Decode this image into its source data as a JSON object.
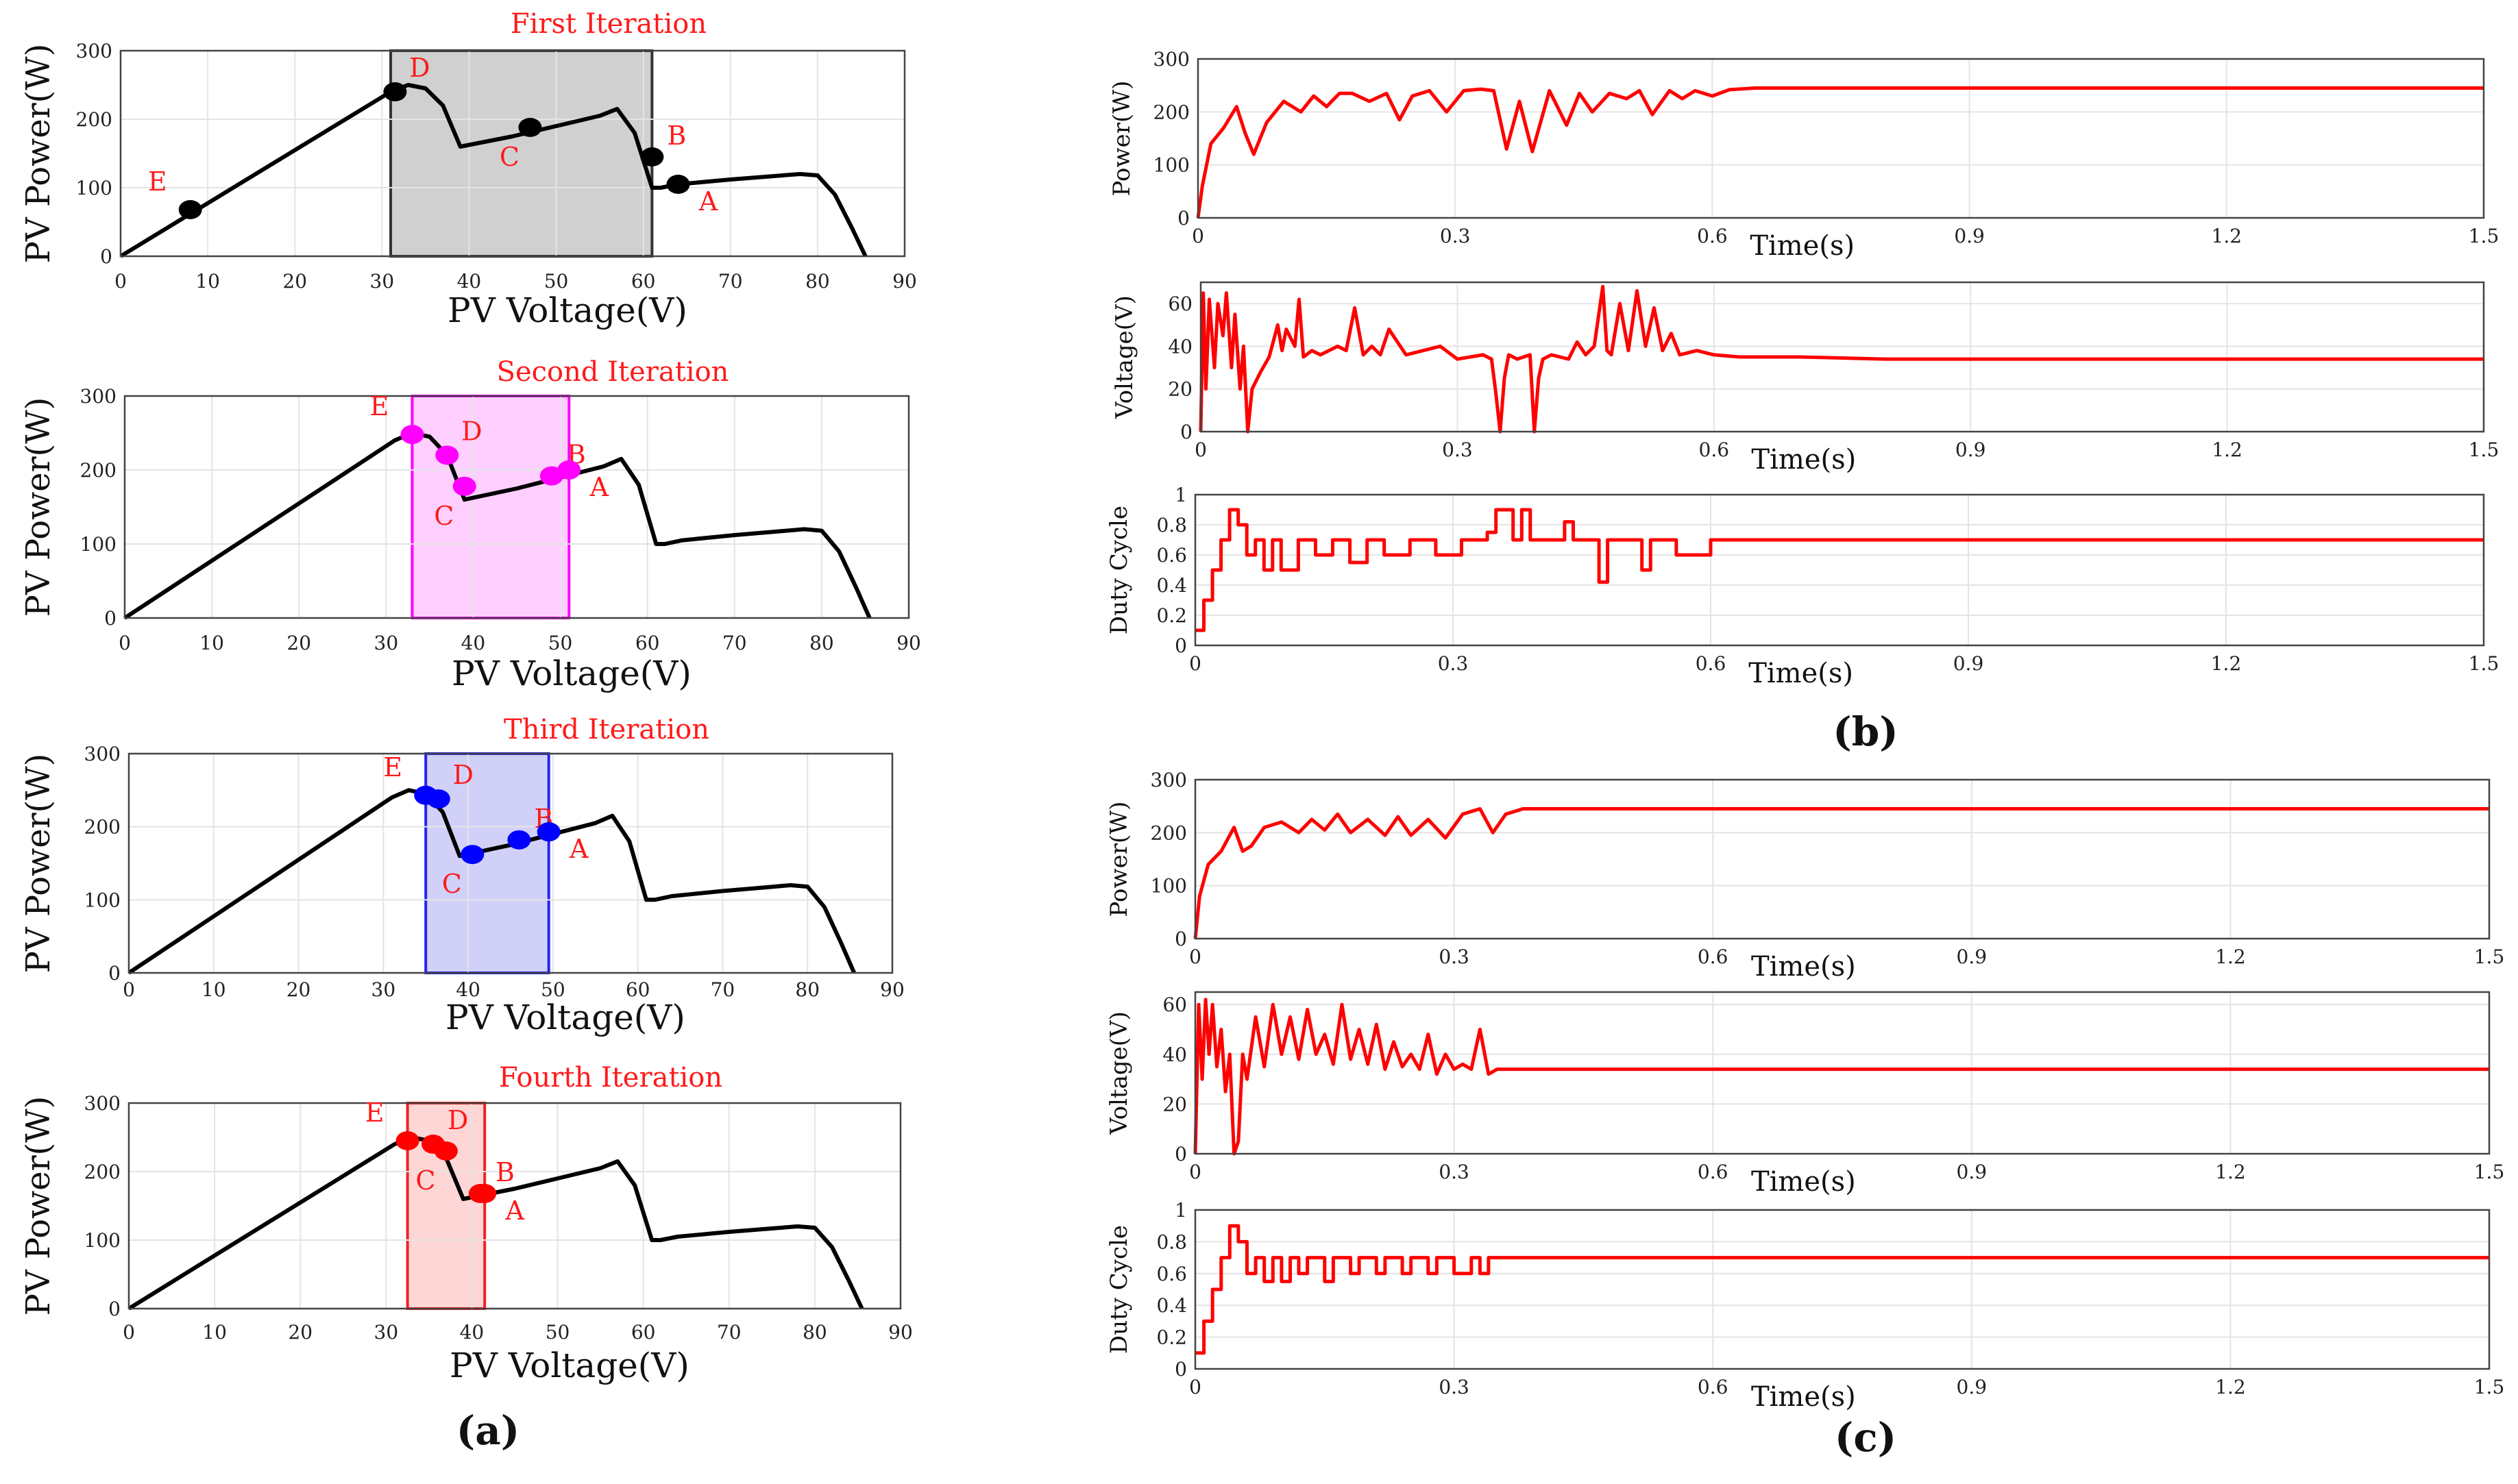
{
  "panels": [
    {
      "label": "(a)"
    },
    {
      "label": "(b)"
    },
    {
      "label": "(c)"
    }
  ],
  "chart_data": [
    {
      "type": "line",
      "panel": "(a)",
      "title": "First Iteration",
      "xlabel": "PV Voltage(V)",
      "ylabel": "PV Power(W)",
      "xlim": [
        0,
        90
      ],
      "ylim": [
        0,
        300
      ],
      "xticks": [
        0,
        10,
        20,
        30,
        40,
        50,
        60,
        70,
        80,
        90
      ],
      "yticks": [
        0,
        100,
        200,
        300
      ],
      "grid": true,
      "color": "#000000",
      "x": [
        0,
        31,
        33,
        35,
        37,
        39,
        45,
        50,
        55,
        57,
        59,
        61,
        62,
        64,
        70,
        75,
        78,
        80,
        82,
        84,
        85.5
      ],
      "y": [
        0,
        240,
        250,
        245,
        220,
        160,
        175,
        190,
        205,
        215,
        180,
        100,
        100,
        105,
        112,
        117,
        120,
        118,
        90,
        40,
        0
      ],
      "shade": {
        "from": 31,
        "to": 61,
        "fill": "#d0d0d0",
        "stroke": "#333333"
      },
      "marker_color": "#000000",
      "points": [
        {
          "label": "E",
          "x": 8,
          "y": 68
        },
        {
          "label": "D",
          "x": 31.5,
          "y": 240
        },
        {
          "label": "C",
          "x": 47,
          "y": 188
        },
        {
          "label": "B",
          "x": 61,
          "y": 145
        },
        {
          "label": "A",
          "x": 64,
          "y": 105
        }
      ]
    },
    {
      "type": "line",
      "panel": "(a)",
      "title": "Second Iteration",
      "xlabel": "PV Voltage(V)",
      "ylabel": "PV Power(W)",
      "xlim": [
        0,
        90
      ],
      "ylim": [
        0,
        300
      ],
      "xticks": [
        0,
        10,
        20,
        30,
        40,
        50,
        60,
        70,
        80,
        90
      ],
      "yticks": [
        0,
        100,
        200,
        300
      ],
      "grid": true,
      "color": "#000000",
      "x": [
        0,
        31,
        33,
        35,
        37,
        39,
        45,
        50,
        55,
        57,
        59,
        61,
        62,
        64,
        70,
        75,
        78,
        80,
        82,
        84,
        85.5
      ],
      "y": [
        0,
        240,
        250,
        245,
        220,
        160,
        175,
        190,
        205,
        215,
        180,
        100,
        100,
        105,
        112,
        117,
        120,
        118,
        90,
        40,
        0
      ],
      "shade": {
        "from": 33,
        "to": 51,
        "fill": "#ffd0ff",
        "stroke": "#ff00ff"
      },
      "marker_color": "#ff00ff",
      "points": [
        {
          "label": "E",
          "x": 33,
          "y": 248
        },
        {
          "label": "D",
          "x": 37,
          "y": 220
        },
        {
          "label": "C",
          "x": 39,
          "y": 178
        },
        {
          "label": "B",
          "x": 49,
          "y": 192
        },
        {
          "label": "A",
          "x": 51,
          "y": 200
        }
      ]
    },
    {
      "type": "line",
      "panel": "(a)",
      "title": "Third Iteration",
      "xlabel": "PV Voltage(V)",
      "ylabel": "PV Power(W)",
      "xlim": [
        0,
        90
      ],
      "ylim": [
        0,
        300
      ],
      "xticks": [
        0,
        10,
        20,
        30,
        40,
        50,
        60,
        70,
        80,
        90
      ],
      "yticks": [
        0,
        100,
        200,
        300
      ],
      "grid": true,
      "color": "#000000",
      "x": [
        0,
        31,
        33,
        35,
        37,
        39,
        45,
        50,
        55,
        57,
        59,
        61,
        62,
        64,
        70,
        75,
        78,
        80,
        82,
        84,
        85.5
      ],
      "y": [
        0,
        240,
        250,
        245,
        220,
        160,
        175,
        190,
        205,
        215,
        180,
        100,
        100,
        105,
        112,
        117,
        120,
        118,
        90,
        40,
        0
      ],
      "shade": {
        "from": 35,
        "to": 49.5,
        "fill": "#d0d0f8",
        "stroke": "#2222ee"
      },
      "marker_color": "#0000ff",
      "points": [
        {
          "label": "E",
          "x": 35,
          "y": 243
        },
        {
          "label": "D",
          "x": 36.5,
          "y": 238
        },
        {
          "label": "C",
          "x": 40.5,
          "y": 162
        },
        {
          "label": "B",
          "x": 46,
          "y": 182
        },
        {
          "label": "A",
          "x": 49.5,
          "y": 193
        }
      ]
    },
    {
      "type": "line",
      "panel": "(a)",
      "title": "Fourth Iteration",
      "xlabel": "PV Voltage(V)",
      "ylabel": "PV Power(W)",
      "xlim": [
        0,
        90
      ],
      "ylim": [
        0,
        300
      ],
      "xticks": [
        0,
        10,
        20,
        30,
        40,
        50,
        60,
        70,
        80,
        90
      ],
      "yticks": [
        0,
        100,
        200,
        300
      ],
      "grid": true,
      "color": "#000000",
      "x": [
        0,
        31,
        33,
        35,
        37,
        39,
        45,
        50,
        55,
        57,
        59,
        61,
        62,
        64,
        70,
        75,
        78,
        80,
        82,
        84,
        85.5
      ],
      "y": [
        0,
        240,
        250,
        245,
        220,
        160,
        175,
        190,
        205,
        215,
        180,
        100,
        100,
        105,
        112,
        117,
        120,
        118,
        90,
        40,
        0
      ],
      "shade": {
        "from": 32.5,
        "to": 41.5,
        "fill": "#ffd6d6",
        "stroke": "#ee2222"
      },
      "marker_color": "#ff0000",
      "points": [
        {
          "label": "E",
          "x": 32.5,
          "y": 245
        },
        {
          "label": "D",
          "x": 35.5,
          "y": 240
        },
        {
          "label": "C",
          "x": 37,
          "y": 230
        },
        {
          "label": "B",
          "x": 41,
          "y": 168
        },
        {
          "label": "A",
          "x": 41.5,
          "y": 168
        }
      ]
    },
    {
      "type": "line",
      "panel": "(b)",
      "title": "",
      "xlabel": "Time(s)",
      "ylabel": "Power(W)",
      "xlim": [
        0,
        1.5
      ],
      "ylim": [
        0,
        300
      ],
      "xticks": [
        0,
        0.3,
        0.6,
        0.9,
        1.2,
        1.5
      ],
      "yticks": [
        0,
        100,
        200,
        300
      ],
      "grid": true,
      "color": "#ff0000",
      "x": [
        0,
        0.005,
        0.015,
        0.03,
        0.045,
        0.055,
        0.065,
        0.08,
        0.1,
        0.12,
        0.135,
        0.15,
        0.165,
        0.18,
        0.2,
        0.22,
        0.235,
        0.25,
        0.27,
        0.29,
        0.31,
        0.33,
        0.345,
        0.36,
        0.375,
        0.39,
        0.41,
        0.43,
        0.445,
        0.46,
        0.48,
        0.5,
        0.515,
        0.53,
        0.55,
        0.565,
        0.58,
        0.6,
        0.62,
        0.65,
        0.7,
        0.8,
        1.0,
        1.5
      ],
      "y": [
        0,
        60,
        140,
        170,
        210,
        160,
        120,
        180,
        220,
        200,
        230,
        210,
        235,
        235,
        220,
        235,
        185,
        230,
        240,
        200,
        240,
        243,
        240,
        130,
        220,
        125,
        240,
        175,
        235,
        200,
        235,
        225,
        240,
        195,
        240,
        225,
        240,
        230,
        242,
        245,
        245,
        245,
        245,
        245
      ]
    },
    {
      "type": "line",
      "panel": "(b)",
      "title": "",
      "xlabel": "Time(s)",
      "ylabel": "Voltage(V)",
      "xlim": [
        0,
        1.5
      ],
      "ylim": [
        0,
        70
      ],
      "xticks": [
        0,
        0.3,
        0.6,
        0.9,
        1.2,
        1.5
      ],
      "yticks": [
        0,
        20,
        40,
        60
      ],
      "grid": true,
      "color": "#ff0000",
      "x": [
        0,
        0.003,
        0.006,
        0.01,
        0.016,
        0.02,
        0.026,
        0.03,
        0.036,
        0.04,
        0.046,
        0.05,
        0.055,
        0.06,
        0.07,
        0.08,
        0.09,
        0.095,
        0.1,
        0.11,
        0.115,
        0.12,
        0.13,
        0.14,
        0.16,
        0.17,
        0.18,
        0.19,
        0.2,
        0.21,
        0.22,
        0.24,
        0.26,
        0.28,
        0.3,
        0.33,
        0.34,
        0.345,
        0.35,
        0.355,
        0.36,
        0.37,
        0.385,
        0.39,
        0.395,
        0.4,
        0.41,
        0.43,
        0.44,
        0.45,
        0.46,
        0.47,
        0.475,
        0.48,
        0.49,
        0.5,
        0.51,
        0.52,
        0.53,
        0.54,
        0.55,
        0.56,
        0.58,
        0.6,
        0.63,
        0.7,
        0.8,
        0.9,
        1.0,
        1.2,
        1.5
      ],
      "y": [
        0,
        65,
        20,
        62,
        30,
        60,
        45,
        65,
        30,
        55,
        20,
        40,
        0,
        20,
        28,
        35,
        50,
        38,
        48,
        40,
        62,
        35,
        38,
        36,
        40,
        38,
        58,
        36,
        40,
        36,
        48,
        36,
        38,
        40,
        34,
        36,
        34,
        18,
        0,
        25,
        36,
        34,
        36,
        0,
        25,
        34,
        36,
        34,
        42,
        36,
        40,
        68,
        38,
        36,
        60,
        38,
        66,
        40,
        58,
        38,
        46,
        36,
        38,
        36,
        35,
        35,
        34,
        34,
        34,
        34,
        34
      ]
    },
    {
      "type": "line",
      "panel": "(b)",
      "title": "",
      "xlabel": "Time(s)",
      "ylabel": "Duty Cycle",
      "xlim": [
        0,
        1.5
      ],
      "ylim": [
        0,
        1
      ],
      "xticks": [
        0,
        0.3,
        0.6,
        0.9,
        1.2,
        1.5
      ],
      "yticks": [
        0,
        0.2,
        0.4,
        0.6,
        0.8,
        1
      ],
      "grid": true,
      "color": "#ff0000",
      "x": [
        0,
        0.01,
        0.01,
        0.02,
        0.02,
        0.03,
        0.03,
        0.04,
        0.04,
        0.05,
        0.05,
        0.06,
        0.06,
        0.07,
        0.07,
        0.08,
        0.08,
        0.09,
        0.09,
        0.1,
        0.1,
        0.12,
        0.12,
        0.14,
        0.14,
        0.16,
        0.16,
        0.18,
        0.18,
        0.2,
        0.2,
        0.22,
        0.22,
        0.25,
        0.25,
        0.28,
        0.28,
        0.31,
        0.31,
        0.34,
        0.34,
        0.35,
        0.35,
        0.37,
        0.37,
        0.38,
        0.38,
        0.39,
        0.39,
        0.43,
        0.43,
        0.44,
        0.44,
        0.47,
        0.47,
        0.48,
        0.48,
        0.52,
        0.52,
        0.53,
        0.53,
        0.56,
        0.56,
        0.6,
        0.6,
        1.5
      ],
      "y": [
        0.1,
        0.1,
        0.3,
        0.3,
        0.5,
        0.5,
        0.7,
        0.7,
        0.9,
        0.9,
        0.8,
        0.8,
        0.6,
        0.6,
        0.7,
        0.7,
        0.5,
        0.5,
        0.7,
        0.7,
        0.5,
        0.5,
        0.7,
        0.7,
        0.6,
        0.6,
        0.7,
        0.7,
        0.55,
        0.55,
        0.7,
        0.7,
        0.6,
        0.6,
        0.7,
        0.7,
        0.6,
        0.6,
        0.7,
        0.7,
        0.75,
        0.75,
        0.9,
        0.9,
        0.7,
        0.7,
        0.9,
        0.9,
        0.7,
        0.7,
        0.82,
        0.82,
        0.7,
        0.7,
        0.42,
        0.42,
        0.7,
        0.7,
        0.5,
        0.5,
        0.7,
        0.7,
        0.6,
        0.6,
        0.7,
        0.7
      ]
    },
    {
      "type": "line",
      "panel": "(c)",
      "title": "",
      "xlabel": "Time(s)",
      "ylabel": "Power(W)",
      "xlim": [
        0,
        1.5
      ],
      "ylim": [
        0,
        300
      ],
      "xticks": [
        0,
        0.3,
        0.6,
        0.9,
        1.2,
        1.5
      ],
      "yticks": [
        0,
        100,
        200,
        300
      ],
      "grid": true,
      "color": "#ff0000",
      "x": [
        0,
        0.005,
        0.015,
        0.03,
        0.045,
        0.055,
        0.065,
        0.08,
        0.1,
        0.12,
        0.135,
        0.15,
        0.165,
        0.18,
        0.2,
        0.22,
        0.235,
        0.25,
        0.27,
        0.29,
        0.31,
        0.33,
        0.345,
        0.36,
        0.38,
        0.5,
        1.0,
        1.5
      ],
      "y": [
        0,
        80,
        140,
        165,
        210,
        165,
        175,
        210,
        220,
        200,
        225,
        205,
        235,
        200,
        225,
        195,
        230,
        195,
        225,
        190,
        235,
        245,
        200,
        235,
        245,
        245,
        245,
        245
      ]
    },
    {
      "type": "line",
      "panel": "(c)",
      "title": "",
      "xlabel": "Time(s)",
      "ylabel": "Voltage(V)",
      "xlim": [
        0,
        1.5
      ],
      "ylim": [
        0,
        65
      ],
      "xticks": [
        0,
        0.3,
        0.6,
        0.9,
        1.2,
        1.5
      ],
      "yticks": [
        0,
        20,
        40,
        60
      ],
      "grid": true,
      "color": "#ff0000",
      "x": [
        0,
        0.004,
        0.008,
        0.012,
        0.016,
        0.02,
        0.025,
        0.03,
        0.035,
        0.04,
        0.045,
        0.05,
        0.055,
        0.06,
        0.07,
        0.08,
        0.09,
        0.1,
        0.11,
        0.12,
        0.13,
        0.14,
        0.15,
        0.16,
        0.17,
        0.18,
        0.19,
        0.2,
        0.21,
        0.22,
        0.23,
        0.24,
        0.25,
        0.26,
        0.27,
        0.28,
        0.29,
        0.3,
        0.31,
        0.32,
        0.33,
        0.34,
        0.35,
        0.6,
        1.0,
        1.5
      ],
      "y": [
        0,
        60,
        30,
        62,
        40,
        60,
        35,
        50,
        25,
        40,
        0,
        5,
        40,
        30,
        55,
        35,
        60,
        40,
        55,
        38,
        58,
        40,
        48,
        36,
        60,
        38,
        50,
        36,
        52,
        34,
        45,
        35,
        40,
        34,
        48,
        32,
        40,
        34,
        36,
        34,
        50,
        32,
        34,
        34,
        34,
        34
      ]
    },
    {
      "type": "line",
      "panel": "(c)",
      "title": "",
      "xlabel": "Time(s)",
      "ylabel": "Duty Cycle",
      "xlim": [
        0,
        1.5
      ],
      "ylim": [
        0,
        1
      ],
      "xticks": [
        0,
        0.3,
        0.6,
        0.9,
        1.2,
        1.5
      ],
      "yticks": [
        0,
        0.2,
        0.4,
        0.6,
        0.8,
        1
      ],
      "grid": true,
      "color": "#ff0000",
      "x": [
        0,
        0.01,
        0.01,
        0.02,
        0.02,
        0.03,
        0.03,
        0.04,
        0.04,
        0.05,
        0.05,
        0.06,
        0.06,
        0.07,
        0.07,
        0.08,
        0.08,
        0.09,
        0.09,
        0.1,
        0.1,
        0.11,
        0.11,
        0.12,
        0.12,
        0.13,
        0.13,
        0.15,
        0.15,
        0.16,
        0.16,
        0.18,
        0.18,
        0.19,
        0.19,
        0.21,
        0.21,
        0.22,
        0.22,
        0.24,
        0.24,
        0.25,
        0.25,
        0.27,
        0.27,
        0.28,
        0.28,
        0.3,
        0.3,
        0.32,
        0.32,
        0.33,
        0.33,
        0.34,
        0.34,
        1.5
      ],
      "y": [
        0.1,
        0.1,
        0.3,
        0.3,
        0.5,
        0.5,
        0.7,
        0.7,
        0.9,
        0.9,
        0.8,
        0.8,
        0.6,
        0.6,
        0.7,
        0.7,
        0.55,
        0.55,
        0.7,
        0.7,
        0.55,
        0.55,
        0.7,
        0.7,
        0.6,
        0.6,
        0.7,
        0.7,
        0.55,
        0.55,
        0.7,
        0.7,
        0.6,
        0.6,
        0.7,
        0.7,
        0.6,
        0.6,
        0.7,
        0.7,
        0.6,
        0.6,
        0.7,
        0.7,
        0.6,
        0.6,
        0.7,
        0.7,
        0.6,
        0.6,
        0.7,
        0.7,
        0.6,
        0.6,
        0.7,
        0.7
      ]
    }
  ]
}
